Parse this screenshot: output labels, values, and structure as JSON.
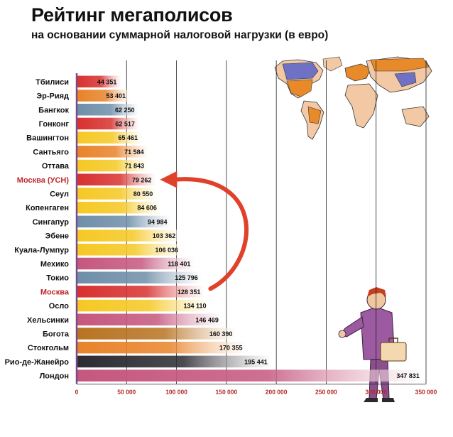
{
  "title": "Рейтинг мегаполисов",
  "subtitle": "на основании суммарной налоговой нагрузки (в евро)",
  "colors": {
    "red": "#d7312f",
    "orange": "#e8832a",
    "yellow": "#f5c823",
    "blue": "#6e8ea8",
    "pink": "#c5577e",
    "brown": "#b87322",
    "dark": "#2b2b33",
    "highlight_label": "#c0272d",
    "arrow": "#e0412a"
  },
  "chart_data": {
    "type": "bar",
    "orientation": "horizontal",
    "title": "Рейтинг мегаполисов",
    "subtitle": "на основании суммарной налоговой нагрузки (в евро)",
    "xlim": [
      0,
      350000
    ],
    "x_ticks": [
      0,
      50000,
      100000,
      150000,
      200000,
      250000,
      300000,
      350000
    ],
    "x_tick_labels": [
      "0",
      "50 000",
      "100 000",
      "150 000",
      "200 000",
      "250 000",
      "300 000",
      "350 000"
    ],
    "grid": "vertical",
    "categories": [
      "Тбилиси",
      "Эр-Рияд",
      "Бангкок",
      "Гонконг",
      "Вашингтон",
      "Сантьяго",
      "Оттава",
      "Москва (УСН)",
      "Сеул",
      "Копенгаген",
      "Сингапур",
      "Эбене",
      "Куала-Лумпур",
      "Мехико",
      "Токио",
      "Москва",
      "Осло",
      "Хельсинки",
      "Богота",
      "Стокгольм",
      "Рио-де-Жанейро",
      "Лондон"
    ],
    "values": [
      44351,
      53401,
      62250,
      62517,
      65461,
      71584,
      71843,
      79262,
      80550,
      84606,
      94984,
      103362,
      106036,
      118401,
      125796,
      128351,
      134110,
      146469,
      160390,
      170355,
      195441,
      347831
    ],
    "value_labels": [
      "44 351",
      "53 401",
      "62 250",
      "62 517",
      "65 461",
      "71 584",
      "71 843",
      "79 262",
      "80 550",
      "84 606",
      "94 984",
      "103 362",
      "106 036",
      "118 401",
      "125 796",
      "128 351",
      "134 110",
      "146 469",
      "160 390",
      "170 355",
      "195 441",
      "347 831"
    ],
    "bar_colors": [
      "red",
      "orange",
      "blue",
      "red",
      "yellow",
      "orange",
      "yellow",
      "red",
      "yellow",
      "yellow",
      "blue",
      "yellow",
      "yellow",
      "pink",
      "blue",
      "red",
      "yellow",
      "pink",
      "brown",
      "orange",
      "dark",
      "pink"
    ],
    "highlighted": [
      "Москва (УСН)",
      "Москва"
    ]
  }
}
